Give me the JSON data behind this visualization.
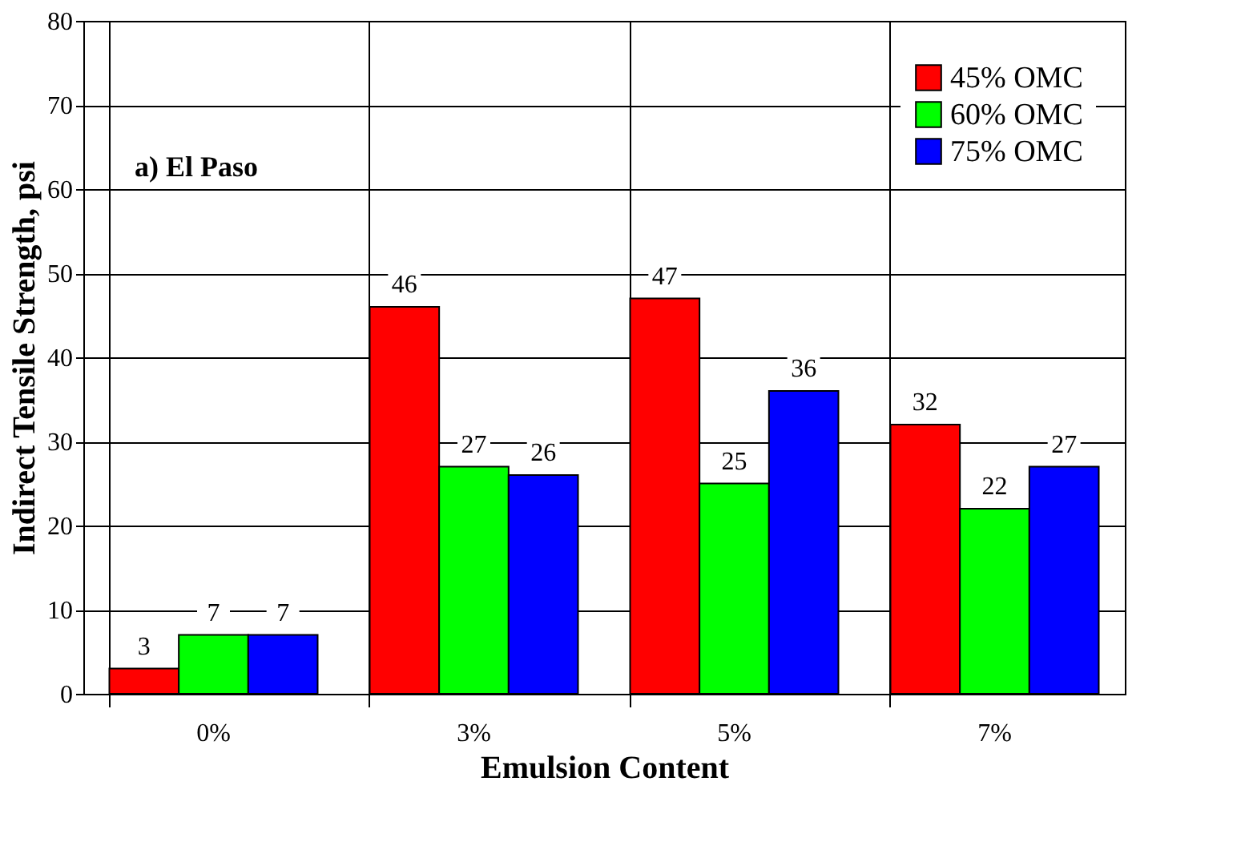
{
  "chart_data": {
    "type": "bar",
    "xlabel": "Emulsion Content",
    "ylabel": "Indirect Tensile Strength, psi",
    "categories": [
      "0%",
      "3%",
      "5%",
      "7%"
    ],
    "series": [
      {
        "name": "45% OMC",
        "color": "#ff0000",
        "values": [
          3,
          46,
          47,
          32
        ]
      },
      {
        "name": "60% OMC",
        "color": "#00ff00",
        "values": [
          7,
          27,
          25,
          22
        ]
      },
      {
        "name": "75% OMC",
        "color": "#0000ff",
        "values": [
          7,
          26,
          36,
          27
        ]
      }
    ],
    "ylim": [
      0,
      80
    ],
    "yticks": [
      0,
      10,
      20,
      30,
      40,
      50,
      60,
      70,
      80
    ],
    "grid": true,
    "legend": "top right",
    "data_labels": true,
    "annotations": [
      "a) El Paso"
    ]
  }
}
